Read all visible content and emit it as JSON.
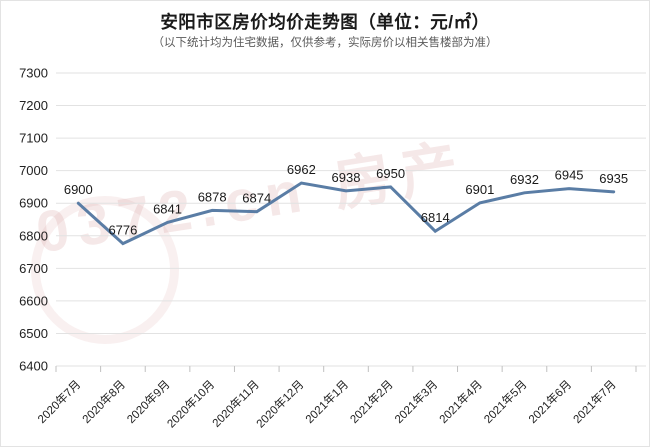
{
  "header": {
    "title": "安阳市区房价均价走势图（单位：元/㎡）",
    "subtitle": "（以下统计均为住宅数据，仅供参考，实际房价以相关售楼部为准）"
  },
  "watermark": {
    "text": "0372.cn 房产",
    "color": "#cf8f8f"
  },
  "chart_data": {
    "type": "line",
    "title": "安阳市区房价均价走势图（单位：元/㎡）",
    "subtitle": "（以下统计均为住宅数据，仅供参考，实际房价以相关售楼部为准）",
    "categories": [
      "2020年7月",
      "2020年8月",
      "2020年9月",
      "2020年10月",
      "2020年11月",
      "2020年12月",
      "2021年1月",
      "2021年2月",
      "2021年3月",
      "2021年4月",
      "2021年5月",
      "2021年6月",
      "2021年7月"
    ],
    "values": [
      6900,
      6776,
      6841,
      6878,
      6874,
      6962,
      6938,
      6950,
      6814,
      6901,
      6932,
      6945,
      6935
    ],
    "xlabel": "",
    "ylabel": "",
    "ylim": [
      6400,
      7300
    ],
    "y_ticks": [
      7300,
      7200,
      7100,
      7000,
      6900,
      6800,
      6700,
      6600,
      6500,
      6400
    ],
    "grid": true,
    "legend": false,
    "data_labels": true,
    "line_color": "#5a7da5",
    "grid_color": "#e2e2e2",
    "tick_color": "#c0c0c0",
    "axis_text_color": "#222222",
    "data_label_color": "#1a1a1a"
  }
}
